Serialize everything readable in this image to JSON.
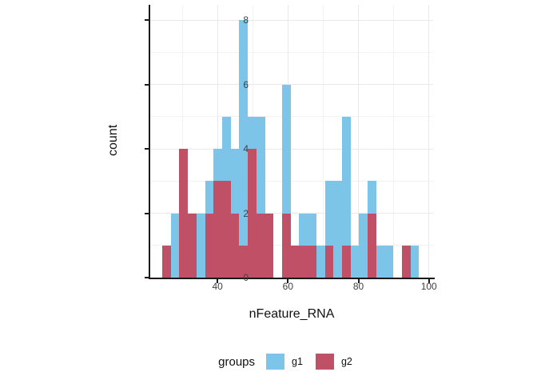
{
  "figure": {
    "background": "#ffffff"
  },
  "colors": {
    "g1_blue": "#7cc4e8",
    "g2_red": "#c05065",
    "axis_line": "#1a1a1a",
    "grid_major": "#e9e9e9",
    "grid_minor": "#f2f2f2",
    "tick_text": "#404040"
  },
  "axes": {
    "x": {
      "title": "nFeature_RNA",
      "major_ticks": [
        40,
        60,
        80,
        100
      ],
      "minor_gridlines": [
        30,
        50,
        70,
        90
      ],
      "domain": [
        20.9,
        101.2
      ]
    },
    "y": {
      "title": "count",
      "major_ticks": [
        0,
        2,
        4,
        6,
        8
      ],
      "minor_gridlines": [
        1,
        3,
        5,
        7
      ],
      "domain": [
        0,
        8.48
      ]
    }
  },
  "legend": {
    "title": "groups",
    "items": [
      {
        "label": "g1",
        "color": "#7cc4e8"
      },
      {
        "label": "g2",
        "color": "#c05065"
      }
    ]
  },
  "chart_data": {
    "type": "bar",
    "subtype": "stacked-histogram",
    "title": "",
    "xlabel": "nFeature_RNA",
    "ylabel": "count",
    "xlim": [
      20.9,
      101.2
    ],
    "ylim": [
      0,
      8.48
    ],
    "grid": true,
    "legend_position": "bottom",
    "bin_start": 24.3,
    "bin_width": 2.43,
    "bin_edges": [
      24.3,
      26.73,
      29.16,
      31.59,
      34.02,
      36.45,
      38.88,
      41.31,
      43.74,
      46.17,
      48.6,
      51.03,
      53.46,
      55.89,
      58.32,
      60.75,
      63.18,
      65.61,
      68.04,
      70.47,
      72.9,
      75.33,
      77.76,
      80.19,
      82.62,
      85.05,
      87.48,
      89.91,
      92.34,
      94.77,
      97.2
    ],
    "stack_order_bottom_to_top": [
      "g2",
      "g1"
    ],
    "series": [
      {
        "name": "g1",
        "color": "#7cc4e8",
        "values": [
          0,
          2,
          0,
          0,
          2,
          1,
          1,
          2,
          2,
          7,
          1,
          3,
          0,
          0,
          4,
          0,
          1,
          1,
          1,
          2,
          3,
          4,
          1,
          2,
          1,
          1,
          1,
          0,
          0,
          1
        ]
      },
      {
        "name": "g2",
        "color": "#c05065",
        "values": [
          1,
          0,
          4,
          2,
          0,
          2,
          3,
          3,
          2,
          1,
          4,
          2,
          2,
          0,
          2,
          1,
          1,
          1,
          0,
          1,
          0,
          1,
          0,
          0,
          2,
          0,
          0,
          0,
          1,
          0
        ]
      }
    ]
  }
}
